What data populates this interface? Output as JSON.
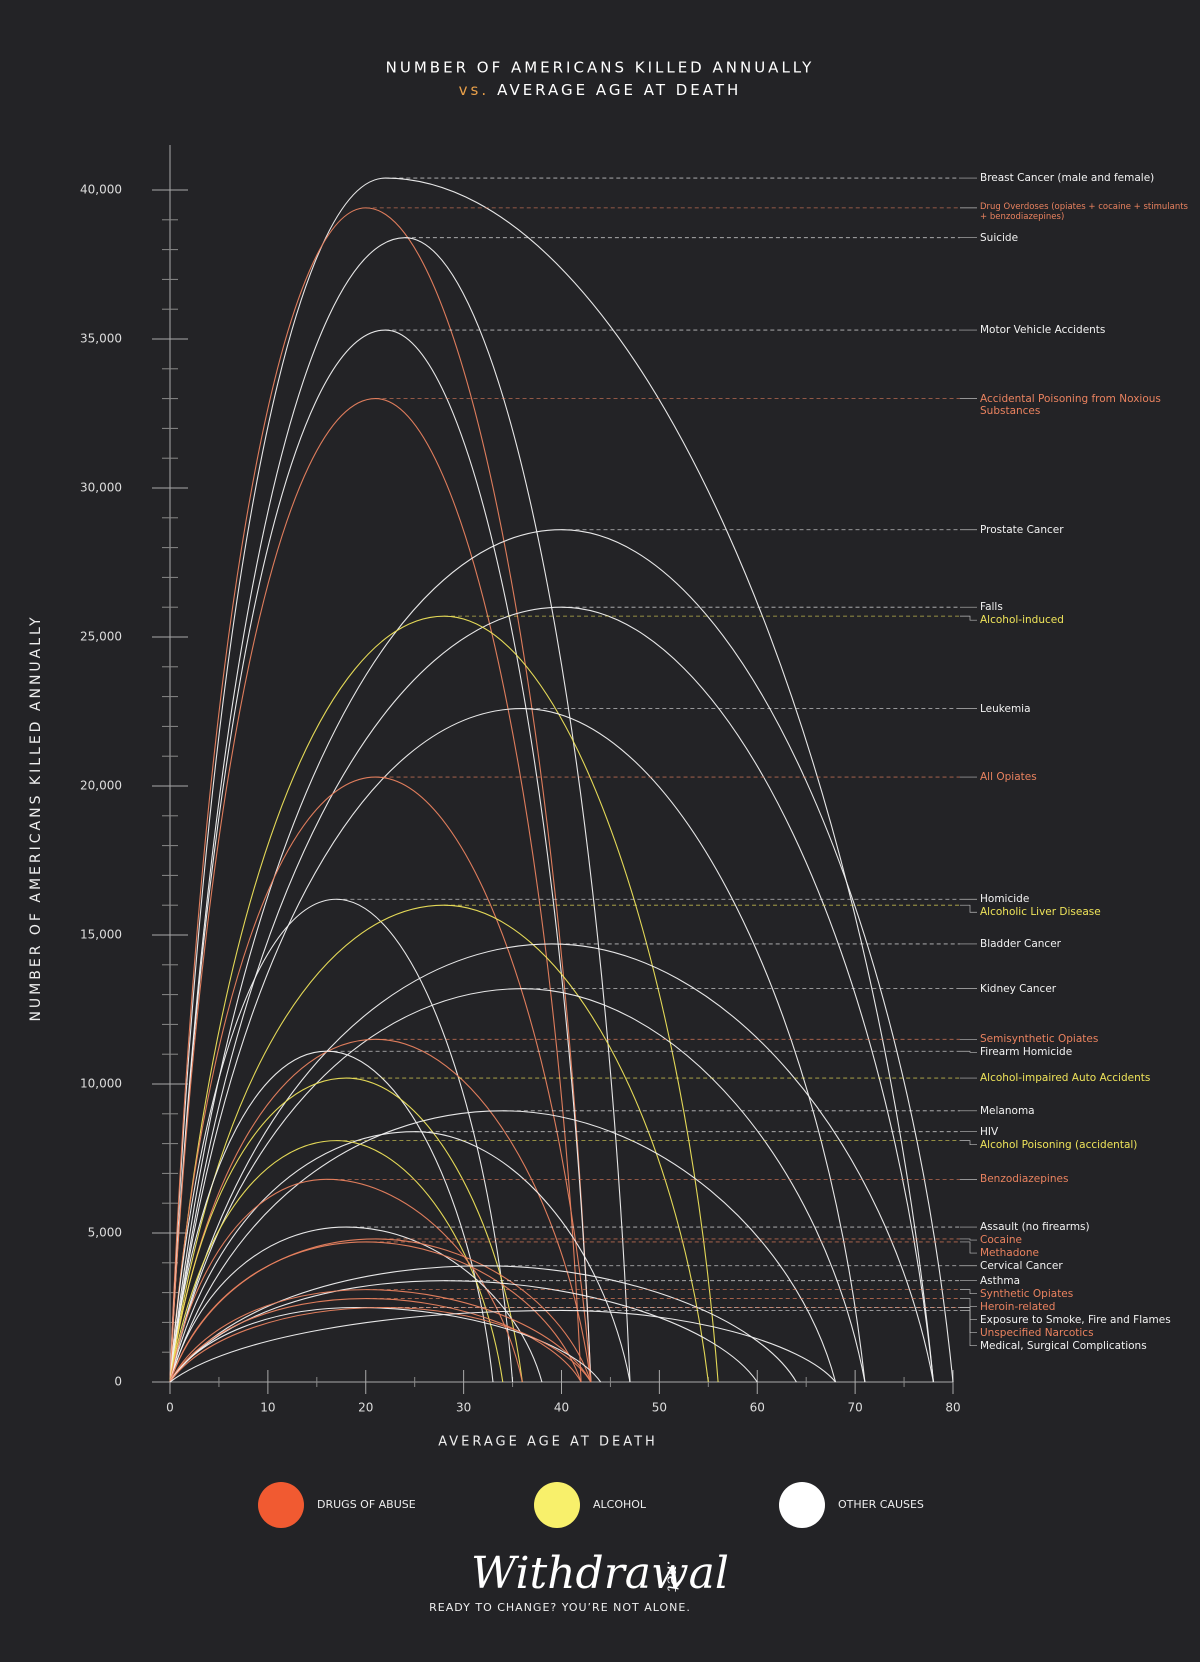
{
  "chart_data": {
    "type": "arc",
    "title": "NUMBER OF AMERICANS KILLED ANNUALLY",
    "title_vs": "vs.",
    "subtitle": "AVERAGE AGE AT DEATH",
    "y_label": "NUMBER OF AMERICANS KILLED ANNUALLY",
    "x_label": "AVERAGE AGE AT DEATH",
    "xlim": [
      0,
      80
    ],
    "xticks": [
      0,
      10,
      20,
      30,
      40,
      50,
      60,
      70,
      80
    ],
    "ylim": [
      0,
      40000
    ],
    "yticks": [
      0,
      {
        "value": 5000,
        "label": "5,000"
      },
      {
        "value": 10000,
        "label": "10,000"
      },
      {
        "value": 15000,
        "label": "15,000"
      },
      {
        "value": 20000,
        "label": "20,000"
      },
      {
        "value": 25000,
        "label": "25,000"
      },
      {
        "value": 30000,
        "label": "30,000"
      },
      {
        "value": 35000,
        "label": "35,000"
      },
      {
        "value": 40000,
        "label": "40,000"
      }
    ],
    "legend": [
      {
        "label": "DRUGS OF ABUSE",
        "color": "#f15a31"
      },
      {
        "label": "ALCOHOL",
        "color": "#f8f06b"
      },
      {
        "label": "OTHER CAUSES",
        "color": "#ffffff"
      }
    ],
    "series": [
      {
        "name": "Breast Cancer (male and female)",
        "color": "#f2f2f2",
        "value": 40400,
        "peak_age": 22,
        "end_age": 78
      },
      {
        "name": "Drug Overdoses (opiates + cocaine + stimulants + benzodiazepines)",
        "color": "#e9825f",
        "value": 39400,
        "peak_age": 20,
        "end_age": 43
      },
      {
        "name": "Suicide",
        "color": "#f2f2f2",
        "value": 38400,
        "peak_age": 24,
        "end_age": 47
      },
      {
        "name": "Motor Vehicle Accidents",
        "color": "#f2f2f2",
        "value": 35300,
        "peak_age": 22,
        "end_age": 43
      },
      {
        "name": "Accidental Poisoning from Noxious Substances",
        "color": "#e9825f",
        "value": 33000,
        "peak_age": 21,
        "end_age": 42
      },
      {
        "name": "Prostate Cancer",
        "color": "#f2f2f2",
        "value": 28600,
        "peak_age": 40,
        "end_age": 80
      },
      {
        "name": "Falls",
        "color": "#f2f2f2",
        "value": 26000,
        "peak_age": 40,
        "end_age": 78
      },
      {
        "name": "Alcohol-induced",
        "color": "#eee35a",
        "value": 25700,
        "peak_age": 28,
        "end_age": 56
      },
      {
        "name": "Leukemia",
        "color": "#f2f2f2",
        "value": 22600,
        "peak_age": 36,
        "end_age": 71
      },
      {
        "name": "All Opiates",
        "color": "#e9825f",
        "value": 20300,
        "peak_age": 21,
        "end_age": 43
      },
      {
        "name": "Homicide",
        "color": "#f2f2f2",
        "value": 16200,
        "peak_age": 17,
        "end_age": 35
      },
      {
        "name": "Alcoholic Liver Disease",
        "color": "#eee35a",
        "value": 16000,
        "peak_age": 28,
        "end_age": 55
      },
      {
        "name": "Bladder Cancer",
        "color": "#f2f2f2",
        "value": 14700,
        "peak_age": 39,
        "end_age": 78
      },
      {
        "name": "Kidney Cancer",
        "color": "#f2f2f2",
        "value": 13200,
        "peak_age": 36,
        "end_age": 71
      },
      {
        "name": "Semisynthetic Opiates",
        "color": "#e9825f",
        "value": 11500,
        "peak_age": 21,
        "end_age": 43
      },
      {
        "name": "Firearm Homicide",
        "color": "#f2f2f2",
        "value": 11100,
        "peak_age": 16,
        "end_age": 33
      },
      {
        "name": "Alcohol-impaired Auto Accidents",
        "color": "#eee35a",
        "value": 10200,
        "peak_age": 18,
        "end_age": 36
      },
      {
        "name": "Melanoma",
        "color": "#f2f2f2",
        "value": 9100,
        "peak_age": 34,
        "end_age": 68
      },
      {
        "name": "HIV",
        "color": "#f2f2f2",
        "value": 8400,
        "peak_age": 25,
        "end_age": 47
      },
      {
        "name": "Alcohol Poisoning (accidental)",
        "color": "#eee35a",
        "value": 8100,
        "peak_age": 17,
        "end_age": 34
      },
      {
        "name": "Benzodiazepines",
        "color": "#e9825f",
        "value": 6800,
        "peak_age": 16,
        "end_age": 36
      },
      {
        "name": "Assault (no firearms)",
        "color": "#f2f2f2",
        "value": 5200,
        "peak_age": 18,
        "end_age": 38
      },
      {
        "name": "Cocaine",
        "color": "#e9825f",
        "value": 4800,
        "peak_age": 21,
        "end_age": 43
      },
      {
        "name": "Methadone",
        "color": "#e9825f",
        "value": 4700,
        "peak_age": 20,
        "end_age": 42
      },
      {
        "name": "Cervical Cancer",
        "color": "#f2f2f2",
        "value": 3900,
        "peak_age": 32,
        "end_age": 64
      },
      {
        "name": "Asthma",
        "color": "#f2f2f2",
        "value": 3400,
        "peak_age": 28,
        "end_age": 60
      },
      {
        "name": "Synthetic Opiates",
        "color": "#e9825f",
        "value": 3100,
        "peak_age": 20,
        "end_age": 43
      },
      {
        "name": "Heroin-related",
        "color": "#e9825f",
        "value": 2800,
        "peak_age": 20,
        "end_age": 42
      },
      {
        "name": "Exposure to Smoke, Fire and Flames",
        "color": "#f2f2f2",
        "value": 2500,
        "peak_age": 19,
        "end_age": 44
      },
      {
        "name": "Unspecified Narcotics",
        "color": "#e9825f",
        "value": 2500,
        "peak_age": 22,
        "end_age": 43
      },
      {
        "name": "Medical, Surgical Complications",
        "color": "#f2f2f2",
        "value": 2400,
        "peak_age": 40,
        "end_age": 68
      }
    ]
  },
  "brand": {
    "name": "Withdrawal",
    "suffix": ".net",
    "tagline": "READY TO CHANGE? YOU’RE NOT ALONE."
  }
}
